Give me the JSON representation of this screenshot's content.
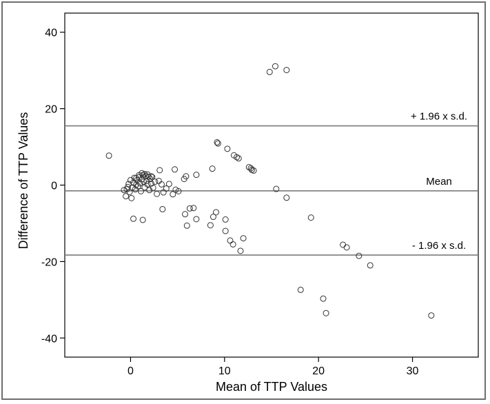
{
  "chart_data": {
    "type": "scatter",
    "title": "",
    "xlabel": "Mean of TTP Values",
    "ylabel": "Difference of TTP Values",
    "xlim": [
      -7,
      37
    ],
    "ylim": [
      -45,
      45
    ],
    "x_ticks": [
      0,
      10,
      20,
      30
    ],
    "y_ticks": [
      40,
      20,
      0,
      -20,
      -40
    ],
    "grid": false,
    "reference_lines": [
      {
        "label": "+ 1.96 x s.d.",
        "y": 15.5
      },
      {
        "label": "Mean",
        "y": -1.5
      },
      {
        "label": "- 1.96 x s.d.",
        "y": -18.3
      }
    ],
    "series": [
      {
        "points": [
          [
            -2.3,
            7.7
          ],
          [
            -0.7,
            -1.3
          ],
          [
            -0.5,
            -2.9
          ],
          [
            -0.4,
            -1.1
          ],
          [
            -0.3,
            -0.5
          ],
          [
            -0.2,
            0.3
          ],
          [
            -0.1,
            -1.8
          ],
          [
            0.0,
            1.3
          ],
          [
            0.1,
            -3.4
          ],
          [
            0.2,
            -0.6
          ],
          [
            0.3,
            0.6
          ],
          [
            0.4,
            1.9
          ],
          [
            0.5,
            -1.1
          ],
          [
            0.6,
            0.1
          ],
          [
            0.7,
            1.3
          ],
          [
            0.8,
            -0.3
          ],
          [
            0.9,
            2.1
          ],
          [
            1.0,
            0.5
          ],
          [
            1.1,
            -1.6
          ],
          [
            1.2,
            1.5
          ],
          [
            1.3,
            2.6
          ],
          [
            1.4,
            0.9
          ],
          [
            1.5,
            -0.6
          ],
          [
            1.6,
            2.4
          ],
          [
            1.7,
            1.1
          ],
          [
            1.8,
            0.2
          ],
          [
            1.9,
            2.2
          ],
          [
            2.0,
            -1.3
          ],
          [
            2.1,
            1.6
          ],
          [
            2.2,
            0.4
          ],
          [
            2.3,
            2.1
          ],
          [
            2.4,
            -0.7
          ],
          [
            2.6,
            0.9
          ],
          [
            2.8,
            -2.3
          ],
          [
            3.0,
            1.1
          ],
          [
            3.3,
            0.2
          ],
          [
            3.5,
            -1.9
          ],
          [
            3.8,
            -0.9
          ],
          [
            4.1,
            0.3
          ],
          [
            4.5,
            -2.4
          ],
          [
            4.8,
            -1.2
          ],
          [
            5.1,
            -1.6
          ],
          [
            1.5,
            2.9
          ],
          [
            1.2,
            3.1
          ],
          [
            1.8,
            2.8
          ],
          [
            0.9,
            2.6
          ],
          [
            2.2,
            2.3
          ],
          [
            0.6,
            1.8
          ],
          [
            3.1,
            3.9
          ],
          [
            4.7,
            4.1
          ],
          [
            5.7,
            1.6
          ],
          [
            5.9,
            2.3
          ],
          [
            7.0,
            2.7
          ],
          [
            0.3,
            -8.8
          ],
          [
            1.3,
            -9.1
          ],
          [
            3.4,
            -6.3
          ],
          [
            5.8,
            -7.6
          ],
          [
            6.0,
            -10.6
          ],
          [
            6.3,
            -6.1
          ],
          [
            6.7,
            -6.0
          ],
          [
            7.0,
            -8.9
          ],
          [
            8.5,
            -10.5
          ],
          [
            8.8,
            -8.3
          ],
          [
            9.1,
            -7.1
          ],
          [
            10.1,
            -9.0
          ],
          [
            10.1,
            -12.0
          ],
          [
            10.6,
            -14.5
          ],
          [
            10.9,
            -15.5
          ],
          [
            11.7,
            -17.2
          ],
          [
            12.0,
            -13.9
          ],
          [
            9.2,
            11.2
          ],
          [
            9.3,
            10.9
          ],
          [
            10.3,
            9.5
          ],
          [
            11.0,
            7.8
          ],
          [
            11.3,
            7.3
          ],
          [
            11.5,
            7.0
          ],
          [
            8.7,
            4.3
          ],
          [
            12.6,
            4.7
          ],
          [
            12.8,
            4.4
          ],
          [
            12.9,
            4.0
          ],
          [
            13.1,
            3.8
          ],
          [
            14.8,
            29.6
          ],
          [
            15.4,
            31.1
          ],
          [
            16.6,
            30.1
          ],
          [
            15.5,
            -1.0
          ],
          [
            16.6,
            -3.3
          ],
          [
            19.2,
            -8.5
          ],
          [
            22.6,
            -15.6
          ],
          [
            23.0,
            -16.3
          ],
          [
            24.3,
            -18.5
          ],
          [
            25.5,
            -21.0
          ],
          [
            18.1,
            -27.4
          ],
          [
            20.5,
            -29.7
          ],
          [
            20.8,
            -33.5
          ],
          [
            32.0,
            -34.1
          ]
        ]
      }
    ]
  }
}
